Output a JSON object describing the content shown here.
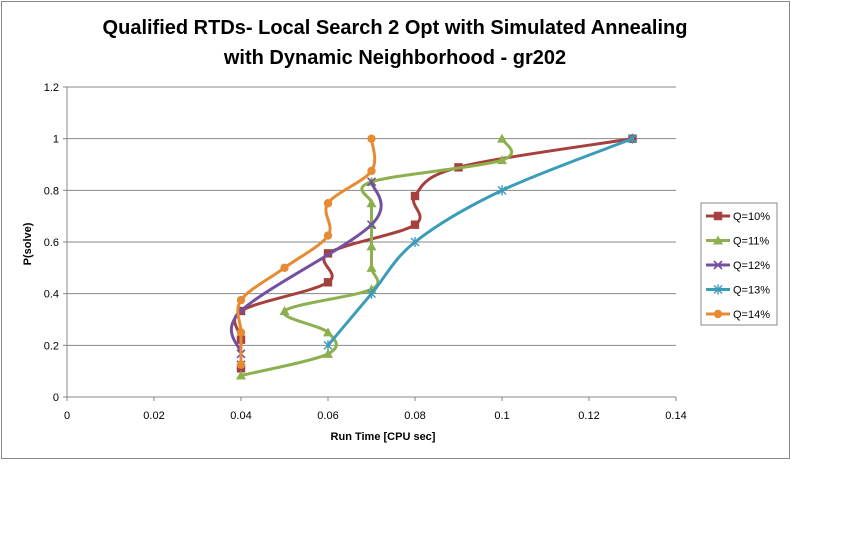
{
  "chart_data": {
    "type": "line",
    "title_line1": "Qualified RTDs- Local Search 2 Opt with Simulated Annealing",
    "title_line2": "with Dynamic Neighborhood - gr202",
    "xlabel": "Run Time [CPU sec]",
    "ylabel": "P(solve)",
    "xlim": [
      0,
      0.14
    ],
    "ylim": [
      0,
      1.2
    ],
    "x_ticks": [
      "0",
      "0.02",
      "0.04",
      "0.06",
      "0.08",
      "0.1",
      "0.12",
      "0.14"
    ],
    "y_ticks": [
      "0",
      "0.2",
      "0.4",
      "0.6",
      "0.8",
      "1",
      "1.2"
    ],
    "grid": "horizontal",
    "legend_position": "right",
    "series": [
      {
        "name": "Q=10%",
        "color": "#A6403D",
        "marker": "square",
        "points": [
          [
            0.04,
            0.111
          ],
          [
            0.04,
            0.222
          ],
          [
            0.04,
            0.333
          ],
          [
            0.06,
            0.444
          ],
          [
            0.06,
            0.556
          ],
          [
            0.08,
            0.667
          ],
          [
            0.08,
            0.778
          ],
          [
            0.09,
            0.889
          ],
          [
            0.13,
            1.0
          ]
        ]
      },
      {
        "name": "Q=11%",
        "color": "#8DB04E",
        "marker": "triangle",
        "points": [
          [
            0.04,
            0.083
          ],
          [
            0.06,
            0.167
          ],
          [
            0.06,
            0.25
          ],
          [
            0.05,
            0.333
          ],
          [
            0.07,
            0.417
          ],
          [
            0.07,
            0.5
          ],
          [
            0.07,
            0.583
          ],
          [
            0.07,
            0.667
          ],
          [
            0.07,
            0.75
          ],
          [
            0.07,
            0.833
          ],
          [
            0.1,
            0.917
          ],
          [
            0.1,
            1.0
          ]
        ]
      },
      {
        "name": "Q=12%",
        "color": "#7350A0",
        "marker": "x",
        "points": [
          [
            0.04,
            0.125
          ],
          [
            0.04,
            0.167
          ],
          [
            0.04,
            0.333
          ],
          [
            0.07,
            0.667
          ],
          [
            0.07,
            0.833
          ]
        ]
      },
      {
        "name": "Q=13%",
        "color": "#3B9CB9",
        "marker": "asterisk",
        "points": [
          [
            0.06,
            0.2
          ],
          [
            0.07,
            0.4
          ],
          [
            0.08,
            0.6
          ],
          [
            0.1,
            0.8
          ],
          [
            0.13,
            1.0
          ]
        ]
      },
      {
        "name": "Q=14%",
        "color": "#E68B34",
        "marker": "circle",
        "points": [
          [
            0.04,
            0.125
          ],
          [
            0.04,
            0.25
          ],
          [
            0.04,
            0.375
          ],
          [
            0.05,
            0.5
          ],
          [
            0.06,
            0.625
          ],
          [
            0.06,
            0.75
          ],
          [
            0.07,
            0.875
          ],
          [
            0.07,
            1.0
          ]
        ]
      }
    ]
  }
}
